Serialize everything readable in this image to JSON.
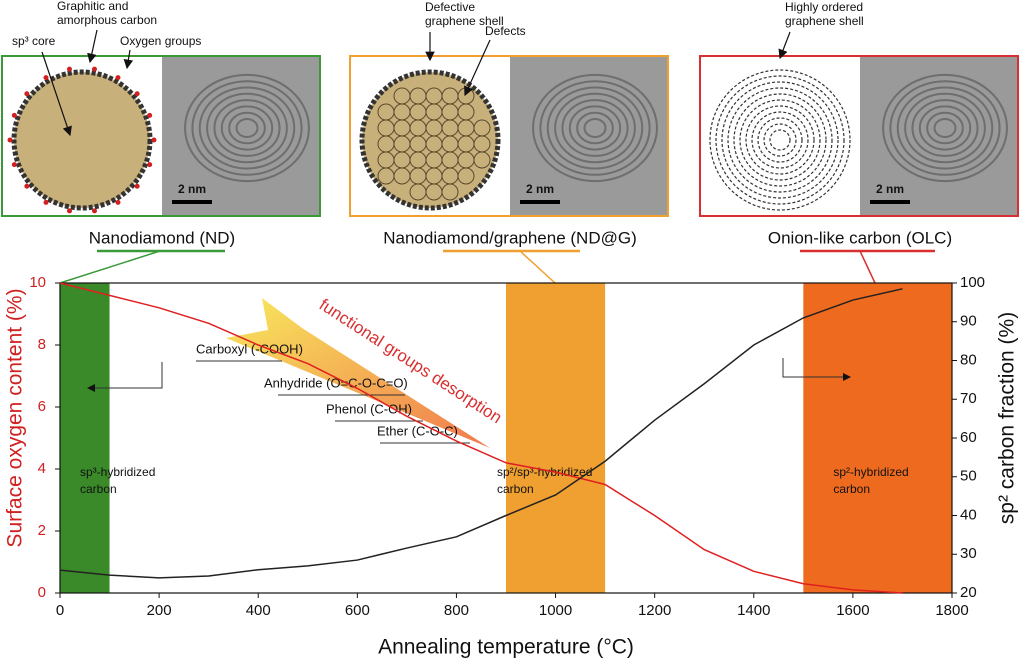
{
  "panels": [
    {
      "label": "Nanodiamond (ND)",
      "color": "#3a9a3a",
      "scale": "2 nm",
      "callouts": [
        [
          "sp³ core"
        ],
        [
          "Graphitic and",
          "amorphous carbon"
        ],
        [
          "Oxygen groups"
        ]
      ]
    },
    {
      "label": "Nanodiamond/graphene (ND@G)",
      "color": "#f0a030",
      "scale": "2 nm",
      "callouts": [
        [
          "Defective",
          "graphene shell"
        ],
        [
          "Defects"
        ]
      ]
    },
    {
      "label": "Onion-like carbon (OLC)",
      "color": "#d83030",
      "scale": "2 nm",
      "callouts": [
        [
          "Highly ordered",
          "graphene shell"
        ]
      ]
    }
  ],
  "chart_data": {
    "type": "line",
    "x_label": "Annealing temperature (°C)",
    "y_label": "Surface oxygen content (%)",
    "y2_label": "sp² carbon fraction (%)",
    "x": [
      0,
      100,
      200,
      300,
      400,
      500,
      600,
      700,
      800,
      900,
      1000,
      1100,
      1200,
      1300,
      1400,
      1500,
      1600,
      1700
    ],
    "series": [
      {
        "name": "Surface oxygen content",
        "color": "#e02020",
        "values": [
          10,
          9.6,
          9.2,
          8.7,
          8.0,
          7.4,
          6.6,
          5.7,
          4.9,
          4.2,
          3.9,
          3.5,
          2.5,
          1.4,
          0.7,
          0.3,
          0.1,
          0
        ]
      },
      {
        "name": "sp² carbon fraction",
        "color": "#222222",
        "axis": "y2",
        "values": [
          25.9,
          24.6,
          23.9,
          24.4,
          26,
          27,
          28.5,
          31.6,
          34.5,
          40,
          45.3,
          54,
          64.6,
          74,
          84,
          91,
          95.6,
          98.5
        ]
      }
    ],
    "xlim": [
      0,
      1800
    ],
    "xticks": [
      0,
      200,
      400,
      600,
      800,
      1000,
      1200,
      1400,
      1600,
      1800
    ],
    "ylim": [
      0,
      10
    ],
    "yticks": [
      0,
      2,
      4,
      6,
      8,
      10
    ],
    "y2lim": [
      20,
      100
    ],
    "y2ticks": [
      20,
      30,
      40,
      50,
      60,
      70,
      80,
      90,
      100
    ],
    "regions": [
      {
        "x": [
          0,
          100
        ],
        "color": "#3a8a2a",
        "label": [
          "sp³-hybridized",
          "carbon"
        ]
      },
      {
        "x": [
          900,
          1100
        ],
        "color": "#f0a030",
        "label": [
          "sp²/sp³-hybridized",
          "carbon"
        ]
      },
      {
        "x": [
          1500,
          1800
        ],
        "color": "#ee6a1e",
        "label": [
          "sp²-hybridized",
          "carbon"
        ]
      }
    ],
    "annotation": "functional groups desorption",
    "groups": [
      "Carboxyl (-COOH)",
      "Anhydride (O=C-O-C=O)",
      "Phenol (C-OH)",
      "Ether (C-O-C)"
    ]
  }
}
